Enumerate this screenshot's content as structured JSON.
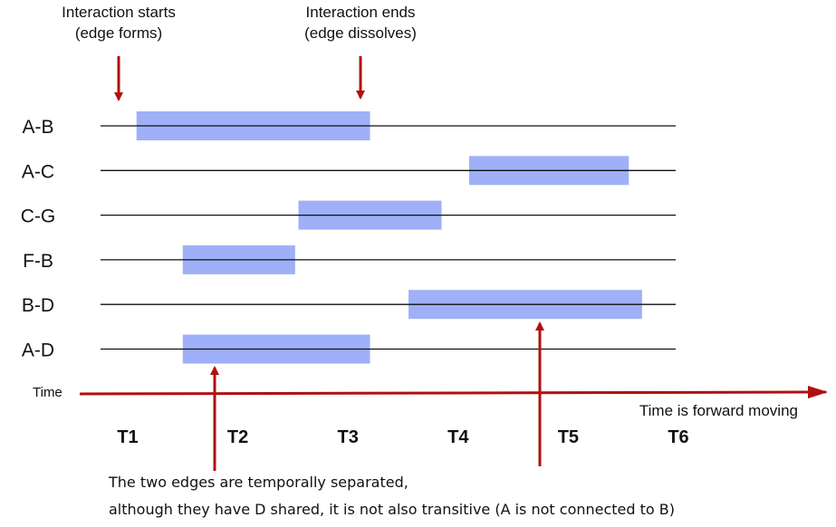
{
  "colors": {
    "bar": "#9fb0f8",
    "arrow": "#b01010",
    "line": "#111111"
  },
  "annotations": {
    "start_line1": "Interaction starts",
    "start_line2": "(edge forms)",
    "end_line1": "Interaction ends",
    "end_line2": "(edge dissolves)"
  },
  "time_axis": {
    "label": "Time",
    "direction_note": "Time is forward moving",
    "ticks": [
      "T1",
      "T2",
      "T3",
      "T4",
      "T5",
      "T6"
    ]
  },
  "edges": [
    {
      "label": "A-B",
      "start": 1.08,
      "end": 3.2
    },
    {
      "label": "A-C",
      "start": 4.1,
      "end": 5.55
    },
    {
      "label": "C-G",
      "start": 2.55,
      "end": 3.85
    },
    {
      "label": "F-B",
      "start": 1.5,
      "end": 2.52
    },
    {
      "label": "B-D",
      "start": 3.55,
      "end": 5.67
    },
    {
      "label": "A-D",
      "start": 1.5,
      "end": 3.2
    }
  ],
  "note": {
    "line1": "The two edges are temporally separated,",
    "line2": "although they have D shared, it is not also transitive (A is not connected to B)"
  }
}
